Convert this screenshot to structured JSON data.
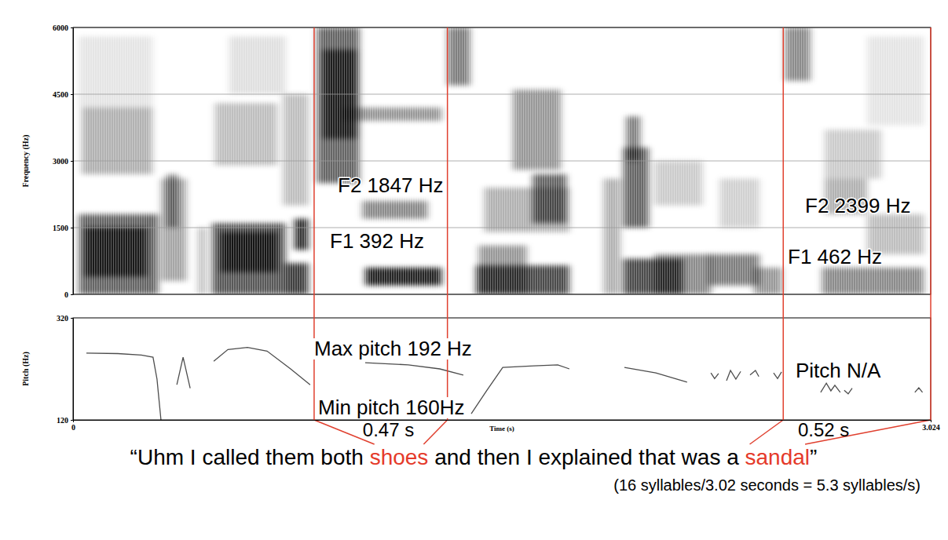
{
  "chart_data": [
    {
      "type": "heatmap",
      "ylabel": "Frequency (Hz)",
      "xlim": [
        0,
        3.024
      ],
      "ylim": [
        0,
        6000
      ],
      "yticks": [
        0,
        1500,
        3000,
        4500,
        6000
      ],
      "grid": true,
      "tick_labels": "y",
      "zlim": [
        0,
        1
      ],
      "cells": [
        {
          "t0": 0.02,
          "t1": 0.3,
          "f0": 0,
          "f1": 1800,
          "z": 0.6
        },
        {
          "t0": 0.04,
          "t1": 0.26,
          "f0": 400,
          "f1": 1500,
          "z": 0.75
        },
        {
          "t0": 0.03,
          "t1": 0.28,
          "f0": 2700,
          "f1": 4200,
          "z": 0.3
        },
        {
          "t0": 0.02,
          "t1": 0.28,
          "f0": 4200,
          "f1": 5800,
          "z": 0.1
        },
        {
          "t0": 0.31,
          "t1": 0.4,
          "f0": 300,
          "f1": 2600,
          "z": 0.35
        },
        {
          "t0": 0.33,
          "t1": 0.37,
          "f0": 1500,
          "f1": 2700,
          "z": 0.45
        },
        {
          "t0": 0.44,
          "t1": 0.47,
          "f0": 0,
          "f1": 1500,
          "z": 0.25
        },
        {
          "t0": 0.49,
          "t1": 0.75,
          "f0": 0,
          "f1": 1600,
          "z": 0.65
        },
        {
          "t0": 0.52,
          "t1": 0.72,
          "f0": 500,
          "f1": 1400,
          "z": 0.75
        },
        {
          "t0": 0.5,
          "t1": 0.72,
          "f0": 2900,
          "f1": 4300,
          "z": 0.25
        },
        {
          "t0": 0.55,
          "t1": 0.75,
          "f0": 4500,
          "f1": 5800,
          "z": 0.12
        },
        {
          "t0": 0.75,
          "t1": 0.83,
          "f0": 0,
          "f1": 700,
          "z": 0.75
        },
        {
          "t0": 0.78,
          "t1": 0.83,
          "f0": 1000,
          "f1": 1700,
          "z": 0.8
        },
        {
          "t0": 0.74,
          "t1": 0.83,
          "f0": 2000,
          "f1": 4500,
          "z": 0.25
        },
        {
          "t0": 0.86,
          "t1": 1.01,
          "f0": 2500,
          "f1": 6000,
          "z": 0.6
        },
        {
          "t0": 0.88,
          "t1": 1.0,
          "f0": 3500,
          "f1": 5500,
          "z": 0.7
        },
        {
          "t0": 1.03,
          "t1": 1.3,
          "f0": 200,
          "f1": 600,
          "z": 0.85
        },
        {
          "t0": 1.02,
          "t1": 1.25,
          "f0": 1700,
          "f1": 2100,
          "z": 0.45
        },
        {
          "t0": 0.95,
          "t1": 1.3,
          "f0": 3900,
          "f1": 4200,
          "z": 0.4
        },
        {
          "t0": 1.32,
          "t1": 1.4,
          "f0": 4700,
          "f1": 6000,
          "z": 0.5
        },
        {
          "t0": 1.42,
          "t1": 1.75,
          "f0": 0,
          "f1": 650,
          "z": 0.7
        },
        {
          "t0": 1.43,
          "t1": 1.6,
          "f0": 0,
          "f1": 1100,
          "z": 0.4
        },
        {
          "t0": 1.45,
          "t1": 1.75,
          "f0": 1400,
          "f1": 2400,
          "z": 0.3
        },
        {
          "t0": 1.55,
          "t1": 1.72,
          "f0": 2800,
          "f1": 4600,
          "z": 0.4
        },
        {
          "t0": 1.62,
          "t1": 1.74,
          "f0": 1600,
          "f1": 2700,
          "z": 0.6
        },
        {
          "t0": 1.87,
          "t1": 1.93,
          "f0": 0,
          "f1": 2600,
          "z": 0.3
        },
        {
          "t0": 1.94,
          "t1": 2.15,
          "f0": 0,
          "f1": 800,
          "z": 0.7
        },
        {
          "t0": 1.94,
          "t1": 2.03,
          "f0": 1500,
          "f1": 3300,
          "z": 0.6
        },
        {
          "t0": 1.95,
          "t1": 2.0,
          "f0": 3000,
          "f1": 4000,
          "z": 0.5
        },
        {
          "t0": 2.05,
          "t1": 2.25,
          "f0": 0,
          "f1": 900,
          "z": 0.45
        },
        {
          "t0": 2.05,
          "t1": 2.22,
          "f0": 2000,
          "f1": 3000,
          "z": 0.2
        },
        {
          "t0": 2.24,
          "t1": 2.42,
          "f0": 200,
          "f1": 900,
          "z": 0.5
        },
        {
          "t0": 2.28,
          "t1": 2.42,
          "f0": 1500,
          "f1": 2600,
          "z": 0.18
        },
        {
          "t0": 2.4,
          "t1": 2.5,
          "f0": 0,
          "f1": 600,
          "z": 0.4
        },
        {
          "t0": 2.51,
          "t1": 2.6,
          "f0": 4800,
          "f1": 6000,
          "z": 0.45
        },
        {
          "t0": 2.64,
          "t1": 3.0,
          "f0": 0,
          "f1": 600,
          "z": 0.45
        },
        {
          "t0": 2.65,
          "t1": 2.8,
          "f0": 1800,
          "f1": 2600,
          "z": 0.3
        },
        {
          "t0": 2.8,
          "t1": 3.0,
          "f0": 900,
          "f1": 1800,
          "z": 0.25
        },
        {
          "t0": 2.65,
          "t1": 2.85,
          "f0": 2600,
          "f1": 3700,
          "z": 0.2
        },
        {
          "t0": 2.8,
          "t1": 3.0,
          "f0": 3800,
          "f1": 5800,
          "z": 0.1
        }
      ],
      "annotations": [
        "F2 1847 Hz",
        "F1 392 Hz",
        "F2 2399 Hz",
        "F1 462 Hz"
      ]
    },
    {
      "type": "line",
      "xlabel": "Time (s)",
      "ylabel": "Pitch (Hz)",
      "xlim": [
        0,
        3.024
      ],
      "ylim": [
        120,
        320
      ],
      "xticks": [
        0,
        3.024
      ],
      "yticks": [
        120,
        320
      ],
      "x": [
        0.047,
        0.158,
        0.241,
        0.282,
        0.296,
        0.31,
        0.34,
        0.366,
        0.388,
        0.413,
        0.45,
        0.496,
        0.546,
        0.615,
        0.684,
        0.767,
        0.836,
        0.93,
        1.03,
        1.182,
        1.293,
        1.376,
        1.39,
        1.404,
        1.459,
        1.515,
        1.625,
        1.709,
        1.75,
        1.85,
        1.944,
        2.055,
        2.165,
        2.21,
        2.249,
        2.262,
        2.276,
        2.29,
        2.304,
        2.318,
        2.337,
        2.354,
        2.37,
        2.387,
        2.406,
        2.418,
        2.44,
        2.47,
        2.484,
        2.498,
        2.57,
        2.636,
        2.656,
        2.672,
        2.686,
        2.705,
        2.712,
        2.719,
        2.733,
        2.747,
        2.85,
        2.968,
        2.982,
        2.995
      ],
      "series": [
        {
          "color": "#4d4d4d",
          "values": [
            251,
            250,
            247,
            243,
            200,
            120,
            null,
            189,
            243,
            182,
            null,
            235,
            258,
            262,
            255,
            220,
            189,
            null,
            232,
            228,
            220,
            208,
            null,
            132,
            178,
            223,
            226,
            228,
            220,
            null,
            223,
            212,
            194,
            null,
            212,
            201,
            211,
            null,
            197,
            217,
            200,
            215,
            null,
            208,
            217,
            205,
            null,
            212,
            201,
            214,
            null,
            174,
            192,
            177,
            188,
            174,
            null,
            178,
            171,
            182,
            null,
            174,
            183,
            174
          ]
        }
      ],
      "annotations": [
        "Max pitch 192 Hz",
        "Min pitch 160Hz",
        "Pitch N/A"
      ]
    }
  ],
  "segments": [
    {
      "start": 0.85,
      "end": 1.32,
      "label": "0.47 s",
      "color": "#e0402f"
    },
    {
      "start": 2.504,
      "end": 3.024,
      "label": "0.52 s",
      "color": "#e0402f"
    }
  ],
  "caption": {
    "parts": [
      {
        "text": "“Uhm I called them both "
      },
      {
        "text": "shoes",
        "color": "#e53a2a"
      },
      {
        "text": " and then I explained that was a "
      },
      {
        "text": "sandal",
        "color": "#e53a2a"
      },
      {
        "text": "”"
      }
    ],
    "subtitle": "(16 syllables/3.02 seconds = 5.3 syllables/s)"
  }
}
